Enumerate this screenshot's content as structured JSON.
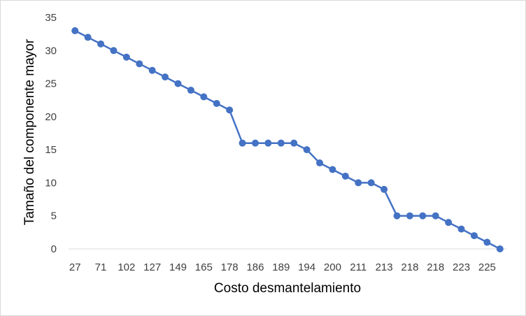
{
  "chart_data": {
    "type": "line",
    "title": "",
    "xlabel": "Costo desmantelamiento",
    "ylabel": "Tamaño del componente mayor",
    "ylim": [
      0,
      35
    ],
    "yticks": [
      0,
      5,
      10,
      15,
      20,
      25,
      30,
      35
    ],
    "grid": false,
    "legend": "none",
    "x_tick_labels": [
      "27",
      "71",
      "102",
      "127",
      "149",
      "165",
      "178",
      "186",
      "189",
      "194",
      "200",
      "211",
      "213",
      "218",
      "218",
      "223",
      "225"
    ],
    "series": [
      {
        "color": "#4472c4",
        "marker": "circle",
        "values": [
          33,
          32,
          31,
          30,
          29,
          28,
          27,
          26,
          25,
          24,
          23,
          22,
          21,
          16,
          16,
          16,
          16,
          16,
          15,
          13,
          12,
          11,
          10,
          10,
          9,
          5,
          5,
          5,
          5,
          4,
          3,
          2,
          1,
          0
        ]
      }
    ]
  }
}
